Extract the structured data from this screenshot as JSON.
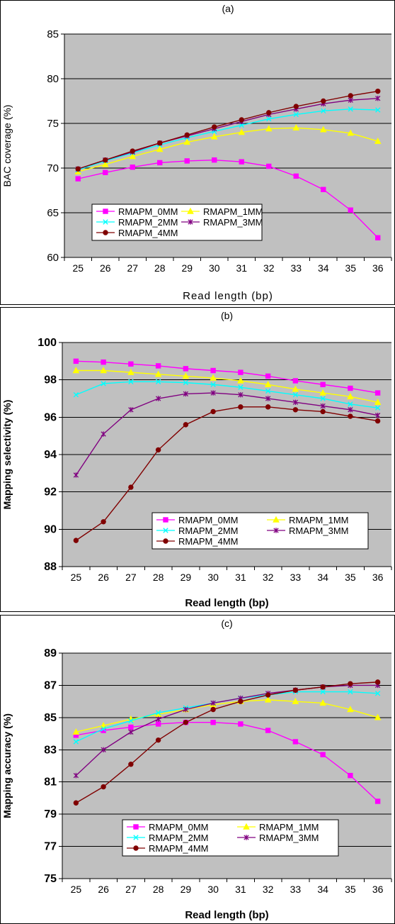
{
  "chart_data": [
    {
      "type": "line",
      "title": "(a)",
      "xlabel": "Read length (bp)",
      "ylabel": "BAC coverage (%)",
      "x": [
        25,
        26,
        27,
        28,
        29,
        30,
        31,
        32,
        33,
        34,
        35,
        36
      ],
      "ylim": [
        60,
        85
      ],
      "yticks": [
        60,
        65,
        70,
        75,
        80,
        85
      ],
      "grid": true,
      "legend_position": "bottom-left",
      "series": [
        {
          "name": "RMAPM_0MM",
          "color": "#ff00ff",
          "marker": "square",
          "values": [
            68.8,
            69.5,
            70.1,
            70.6,
            70.8,
            70.9,
            70.7,
            70.2,
            69.1,
            67.6,
            65.3,
            62.2
          ]
        },
        {
          "name": "RMAPM_1MM",
          "color": "#ffff00",
          "marker": "triangle",
          "values": [
            69.6,
            70.4,
            71.3,
            72.1,
            72.9,
            73.5,
            74.0,
            74.4,
            74.5,
            74.3,
            73.9,
            73.0
          ]
        },
        {
          "name": "RMAPM_2MM",
          "color": "#00ffff",
          "marker": "x",
          "values": [
            69.8,
            70.8,
            71.7,
            72.6,
            73.4,
            74.1,
            74.8,
            75.5,
            76.0,
            76.4,
            76.6,
            76.5
          ]
        },
        {
          "name": "RMAPM_3MM",
          "color": "#800080",
          "marker": "star",
          "values": [
            69.9,
            70.9,
            71.8,
            72.8,
            73.6,
            74.4,
            75.2,
            76.0,
            76.6,
            77.2,
            77.6,
            77.8
          ]
        },
        {
          "name": "RMAPM_4MM",
          "color": "#800000",
          "marker": "circle",
          "values": [
            69.9,
            70.9,
            71.9,
            72.8,
            73.7,
            74.6,
            75.4,
            76.2,
            76.9,
            77.5,
            78.1,
            78.6
          ]
        }
      ]
    },
    {
      "type": "line",
      "title": "(b)",
      "xlabel": "Read length (bp)",
      "ylabel": "Mapping selectivity (%)",
      "x": [
        25,
        26,
        27,
        28,
        29,
        30,
        31,
        32,
        33,
        34,
        35,
        36
      ],
      "ylim": [
        88,
        100
      ],
      "yticks": [
        88,
        90,
        92,
        94,
        96,
        98,
        100
      ],
      "grid": true,
      "legend_position": "bottom-center",
      "series": [
        {
          "name": "RMAPM_0MM",
          "color": "#ff00ff",
          "marker": "square",
          "values": [
            99.0,
            98.95,
            98.85,
            98.75,
            98.6,
            98.5,
            98.4,
            98.2,
            97.95,
            97.75,
            97.55,
            97.3
          ]
        },
        {
          "name": "RMAPM_1MM",
          "color": "#ffff00",
          "marker": "triangle",
          "values": [
            98.5,
            98.5,
            98.4,
            98.3,
            98.2,
            98.1,
            97.95,
            97.75,
            97.5,
            97.3,
            97.1,
            96.8
          ]
        },
        {
          "name": "RMAPM_2MM",
          "color": "#00ffff",
          "marker": "x",
          "values": [
            97.2,
            97.8,
            97.9,
            97.9,
            97.85,
            97.75,
            97.6,
            97.4,
            97.2,
            97.0,
            96.7,
            96.5
          ]
        },
        {
          "name": "RMAPM_3MM",
          "color": "#800080",
          "marker": "star",
          "values": [
            92.9,
            95.1,
            96.4,
            97.0,
            97.25,
            97.3,
            97.2,
            97.0,
            96.8,
            96.6,
            96.4,
            96.1
          ]
        },
        {
          "name": "RMAPM_4MM",
          "color": "#800000",
          "marker": "circle",
          "values": [
            89.4,
            90.4,
            92.25,
            94.25,
            95.6,
            96.3,
            96.55,
            96.55,
            96.4,
            96.3,
            96.05,
            95.8
          ]
        }
      ]
    },
    {
      "type": "line",
      "title": "(c)",
      "xlabel": "Read length (bp)",
      "ylabel": "Mapping accuracy (%)",
      "x": [
        25,
        26,
        27,
        28,
        29,
        30,
        31,
        32,
        33,
        34,
        35,
        36
      ],
      "ylim": [
        75,
        89
      ],
      "yticks": [
        75,
        77,
        79,
        81,
        83,
        85,
        87,
        89
      ],
      "grid": true,
      "legend_position": "bottom-center",
      "series": [
        {
          "name": "RMAPM_0MM",
          "color": "#ff00ff",
          "marker": "square",
          "values": [
            83.9,
            84.2,
            84.4,
            84.6,
            84.7,
            84.7,
            84.6,
            84.2,
            83.5,
            82.7,
            81.4,
            79.8
          ]
        },
        {
          "name": "RMAPM_1MM",
          "color": "#ffff00",
          "marker": "triangle",
          "values": [
            84.1,
            84.5,
            84.9,
            85.2,
            85.5,
            85.8,
            86.0,
            86.1,
            86.0,
            85.9,
            85.5,
            85.0
          ]
        },
        {
          "name": "RMAPM_2MM",
          "color": "#00ffff",
          "marker": "x",
          "values": [
            83.5,
            84.3,
            84.8,
            85.3,
            85.6,
            85.9,
            86.2,
            86.4,
            86.6,
            86.6,
            86.6,
            86.5
          ]
        },
        {
          "name": "RMAPM_3MM",
          "color": "#800080",
          "marker": "star",
          "values": [
            81.4,
            83.0,
            84.1,
            84.9,
            85.5,
            85.9,
            86.2,
            86.5,
            86.7,
            86.9,
            87.0,
            87.0
          ]
        },
        {
          "name": "RMAPM_4MM",
          "color": "#800000",
          "marker": "circle",
          "values": [
            79.7,
            80.7,
            82.1,
            83.6,
            84.7,
            85.5,
            86.0,
            86.4,
            86.7,
            86.9,
            87.1,
            87.2
          ]
        }
      ]
    }
  ]
}
